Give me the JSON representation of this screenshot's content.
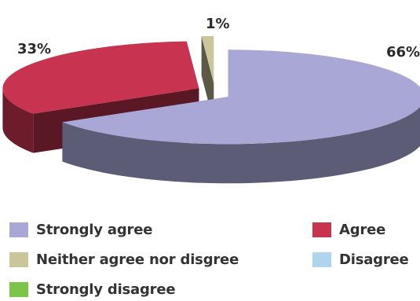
{
  "chart_data": {
    "type": "pie",
    "title": "",
    "categories": [
      "Strongly agree",
      "Agree",
      "Neither agree nor disgree",
      "Disagree",
      "Strongly disagree"
    ],
    "values": [
      66,
      33,
      1,
      0,
      0
    ],
    "value_labels": [
      "66%",
      "33%",
      "1%",
      "",
      ""
    ],
    "colors": [
      "#a9a7d6",
      "#c8334f",
      "#cbc59c",
      "#aed4ee",
      "#7cc44a"
    ],
    "legend_position": "bottom",
    "style": "3d-exploded"
  }
}
